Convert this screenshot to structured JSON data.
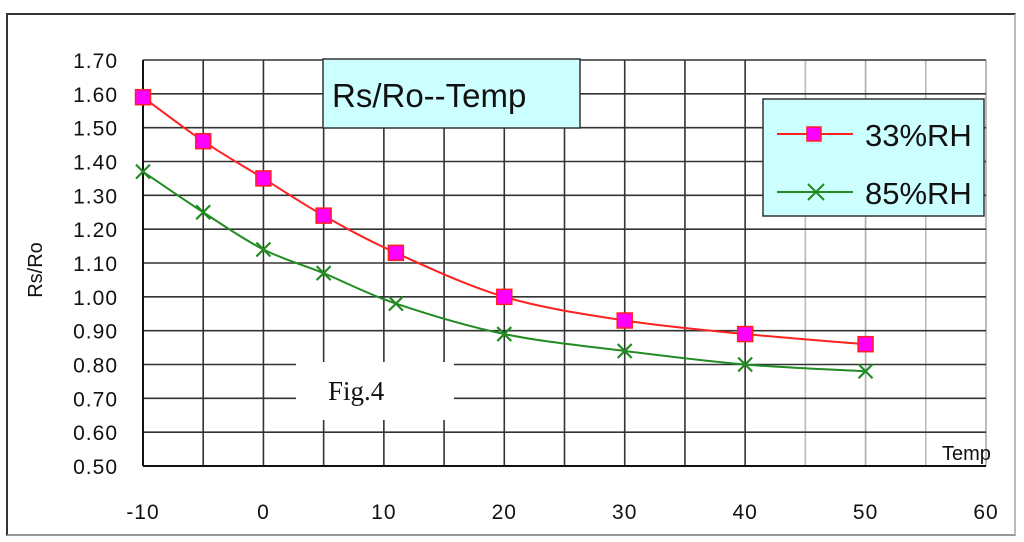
{
  "chart_data": {
    "type": "line",
    "title": "Rs/Ro--Temp",
    "caption": "Fig.4",
    "xlabel": "Temp",
    "ylabel": "Rs/Ro",
    "xlim": [
      -10,
      60
    ],
    "ylim": [
      0.5,
      1.7
    ],
    "x_ticks": [
      "-10",
      "0",
      "10",
      "20",
      "30",
      "40",
      "50",
      "60"
    ],
    "y_ticks": [
      "1.70",
      "1.60",
      "1.50",
      "1.40",
      "1.30",
      "1.20",
      "1.10",
      "1.00",
      "0.90",
      "0.80",
      "0.70",
      "0.60",
      "0.50"
    ],
    "grid": true,
    "legend_position": "upper right",
    "x": [
      -10,
      -5,
      0,
      5,
      11,
      20,
      30,
      40,
      50
    ],
    "series": [
      {
        "name": "33%RH",
        "color": "#ff2020",
        "marker": "square",
        "marker_color": "#ff00ff",
        "values": [
          1.59,
          1.46,
          1.35,
          1.24,
          1.13,
          1.0,
          0.93,
          0.89,
          0.86
        ]
      },
      {
        "name": "85%RH",
        "color": "#228b22",
        "marker": "x",
        "marker_color": "#228b22",
        "values": [
          1.37,
          1.25,
          1.14,
          1.07,
          0.98,
          0.89,
          0.84,
          0.8,
          0.78
        ]
      }
    ]
  },
  "colors": {
    "title_box_bg": "#ccffff",
    "legend_bg": "#ccffff",
    "grid": "#222222"
  }
}
